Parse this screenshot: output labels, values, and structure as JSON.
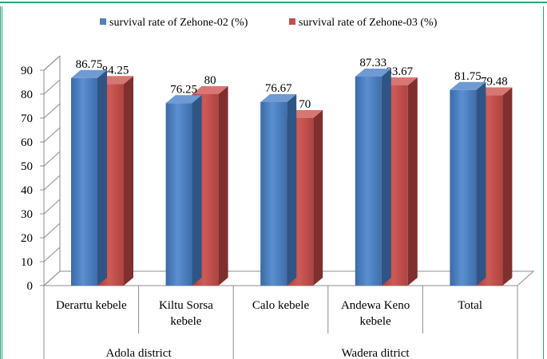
{
  "chart_data": {
    "type": "bar",
    "title": "",
    "xlabel": "",
    "ylabel": "",
    "ylim": [
      0,
      90
    ],
    "yticks": [
      0,
      10,
      20,
      30,
      40,
      50,
      60,
      70,
      80,
      90
    ],
    "grid": false,
    "legend_position": "top",
    "categories": [
      "Derartu kebele",
      "Kiltu Sorsa kebele",
      "Calo kebele",
      "Andewa Keno kebele",
      "Total"
    ],
    "category_lines": [
      [
        "Derartu kebele"
      ],
      [
        "Kiltu Sorsa",
        "kebele"
      ],
      [
        "Calo kebele"
      ],
      [
        "Andewa Keno",
        "kebele"
      ],
      [
        "Total"
      ]
    ],
    "groups": [
      {
        "label": "Adola district",
        "span": 2
      },
      {
        "label": "Wadera ditrict",
        "span": 3
      }
    ],
    "series": [
      {
        "name": "survival rate of Zehone-02 (%)",
        "values": [
          86.75,
          76.25,
          76.67,
          87.33,
          81.75
        ],
        "labels": [
          "86.75",
          "76.25",
          "76.67",
          "87.33",
          "81.75"
        ],
        "color": "#4f81bd"
      },
      {
        "name": "survival rate of Zehone-03 (%)",
        "values": [
          84.25,
          80,
          70,
          83.67,
          79.48
        ],
        "labels": [
          "84.25",
          "80",
          "70",
          "83.67",
          "79.48"
        ],
        "color": "#c0504d"
      }
    ]
  }
}
